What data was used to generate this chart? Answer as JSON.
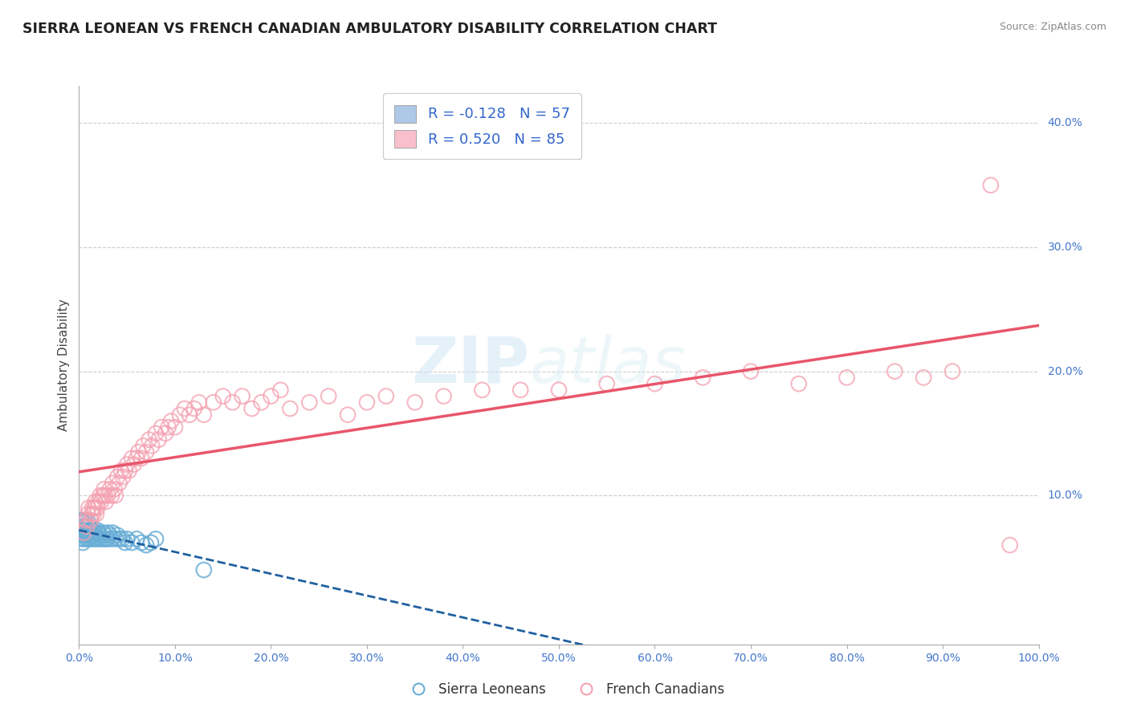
{
  "title": "SIERRA LEONEAN VS FRENCH CANADIAN AMBULATORY DISABILITY CORRELATION CHART",
  "source": "Source: ZipAtlas.com",
  "xlabel": "",
  "ylabel": "Ambulatory Disability",
  "xlim": [
    0.0,
    1.0
  ],
  "ylim": [
    -0.02,
    0.43
  ],
  "xticks": [
    0.0,
    0.1,
    0.2,
    0.3,
    0.4,
    0.5,
    0.6,
    0.7,
    0.8,
    0.9,
    1.0
  ],
  "xticklabels": [
    "0.0%",
    "10.0%",
    "20.0%",
    "30.0%",
    "40.0%",
    "50.0%",
    "60.0%",
    "70.0%",
    "80.0%",
    "90.0%",
    "100.0%"
  ],
  "yticks_right": [
    0.1,
    0.2,
    0.3,
    0.4
  ],
  "ytick_right_labels": [
    "10.0%",
    "20.0%",
    "30.0%",
    "40.0%"
  ],
  "sierra_leone_R": -0.128,
  "sierra_leone_N": 57,
  "french_canadian_R": 0.52,
  "french_canadian_N": 85,
  "sierra_leone_color": "#6aaed6",
  "french_canadian_color": "#f4a0b0",
  "sierra_leone_line_color": "#2060a0",
  "french_canadian_line_color": "#e8566a",
  "legend_box_color_sl": "#aec8e8",
  "legend_box_color_fc": "#f9c0cc",
  "grid_color": "#cccccc",
  "background_color": "#ffffff",
  "watermark_text": "ZIPatlas",
  "sierra_leone_x": [
    0.001,
    0.002,
    0.002,
    0.003,
    0.003,
    0.004,
    0.004,
    0.005,
    0.005,
    0.005,
    0.006,
    0.006,
    0.007,
    0.007,
    0.008,
    0.008,
    0.009,
    0.009,
    0.01,
    0.01,
    0.01,
    0.012,
    0.012,
    0.013,
    0.014,
    0.015,
    0.015,
    0.016,
    0.017,
    0.018,
    0.019,
    0.02,
    0.02,
    0.022,
    0.023,
    0.025,
    0.026,
    0.027,
    0.028,
    0.03,
    0.03,
    0.032,
    0.034,
    0.035,
    0.038,
    0.04,
    0.042,
    0.045,
    0.048,
    0.05,
    0.055,
    0.06,
    0.065,
    0.07,
    0.075,
    0.08,
    0.13
  ],
  "sierra_leone_y": [
    0.07,
    0.065,
    0.08,
    0.072,
    0.068,
    0.075,
    0.062,
    0.07,
    0.078,
    0.065,
    0.08,
    0.072,
    0.068,
    0.075,
    0.065,
    0.07,
    0.068,
    0.075,
    0.065,
    0.07,
    0.078,
    0.065,
    0.072,
    0.07,
    0.068,
    0.065,
    0.072,
    0.068,
    0.07,
    0.065,
    0.072,
    0.07,
    0.065,
    0.068,
    0.065,
    0.07,
    0.065,
    0.068,
    0.065,
    0.07,
    0.065,
    0.068,
    0.065,
    0.07,
    0.065,
    0.068,
    0.065,
    0.065,
    0.062,
    0.065,
    0.062,
    0.065,
    0.062,
    0.06,
    0.062,
    0.065,
    0.04
  ],
  "french_canadian_x": [
    0.005,
    0.007,
    0.008,
    0.009,
    0.01,
    0.012,
    0.013,
    0.014,
    0.015,
    0.016,
    0.017,
    0.018,
    0.019,
    0.02,
    0.022,
    0.023,
    0.025,
    0.026,
    0.027,
    0.028,
    0.03,
    0.032,
    0.034,
    0.035,
    0.037,
    0.038,
    0.04,
    0.042,
    0.044,
    0.046,
    0.048,
    0.05,
    0.052,
    0.055,
    0.057,
    0.06,
    0.062,
    0.065,
    0.067,
    0.07,
    0.073,
    0.076,
    0.08,
    0.083,
    0.086,
    0.09,
    0.093,
    0.096,
    0.1,
    0.105,
    0.11,
    0.115,
    0.12,
    0.125,
    0.13,
    0.14,
    0.15,
    0.16,
    0.17,
    0.18,
    0.19,
    0.2,
    0.21,
    0.22,
    0.24,
    0.26,
    0.28,
    0.3,
    0.32,
    0.35,
    0.38,
    0.42,
    0.46,
    0.5,
    0.55,
    0.6,
    0.65,
    0.7,
    0.75,
    0.8,
    0.85,
    0.88,
    0.91,
    0.95,
    0.97
  ],
  "french_canadian_y": [
    0.07,
    0.08,
    0.075,
    0.085,
    0.09,
    0.08,
    0.085,
    0.09,
    0.085,
    0.09,
    0.095,
    0.085,
    0.09,
    0.095,
    0.1,
    0.095,
    0.1,
    0.105,
    0.1,
    0.095,
    0.1,
    0.105,
    0.1,
    0.11,
    0.105,
    0.1,
    0.115,
    0.11,
    0.12,
    0.115,
    0.12,
    0.125,
    0.12,
    0.13,
    0.125,
    0.13,
    0.135,
    0.13,
    0.14,
    0.135,
    0.145,
    0.14,
    0.15,
    0.145,
    0.155,
    0.15,
    0.155,
    0.16,
    0.155,
    0.165,
    0.17,
    0.165,
    0.17,
    0.175,
    0.165,
    0.175,
    0.18,
    0.175,
    0.18,
    0.17,
    0.175,
    0.18,
    0.185,
    0.17,
    0.175,
    0.18,
    0.165,
    0.175,
    0.18,
    0.175,
    0.18,
    0.185,
    0.185,
    0.185,
    0.19,
    0.19,
    0.195,
    0.2,
    0.19,
    0.195,
    0.2,
    0.195,
    0.2,
    0.35,
    0.06
  ]
}
